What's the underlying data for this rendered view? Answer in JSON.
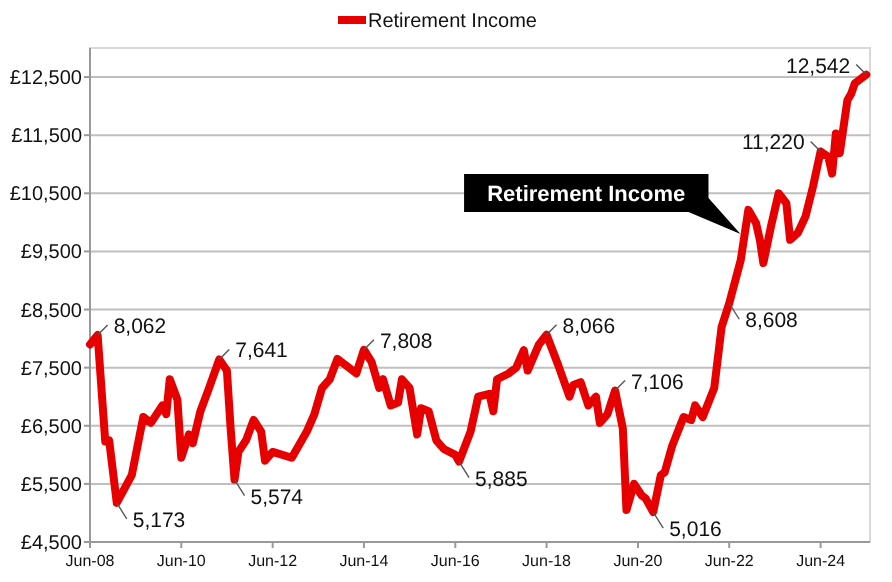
{
  "chart_data": {
    "type": "line",
    "legend": "top",
    "grid": "y",
    "marker": "none",
    "line_style": "solid",
    "xlim": [
      "2008-06",
      "2025-07"
    ],
    "xticks": [
      {
        "value": "2008-06",
        "label": "Jun-08"
      },
      {
        "value": "2010-06",
        "label": "Jun-10"
      },
      {
        "value": "2012-06",
        "label": "Jun-12"
      },
      {
        "value": "2014-06",
        "label": "Jun-14"
      },
      {
        "value": "2016-06",
        "label": "Jun-16"
      },
      {
        "value": "2018-06",
        "label": "Jun-18"
      },
      {
        "value": "2020-06",
        "label": "Jun-20"
      },
      {
        "value": "2022-06",
        "label": "Jun-22"
      },
      {
        "value": "2024-06",
        "label": "Jun-24"
      }
    ],
    "ylim": [
      4500,
      13000
    ],
    "yticks": [
      {
        "value": 4500,
        "label": "£4,500"
      },
      {
        "value": 5500,
        "label": "£5,500"
      },
      {
        "value": 6500,
        "label": "£6,500"
      },
      {
        "value": 7500,
        "label": "£7,500"
      },
      {
        "value": 8500,
        "label": "£8,500"
      },
      {
        "value": 9500,
        "label": "£9,500"
      },
      {
        "value": 10500,
        "label": "£10,500"
      },
      {
        "value": 11500,
        "label": "£11,500"
      },
      {
        "value": 12500,
        "label": "£12,500"
      }
    ],
    "x": [
      "2008-06",
      "2008-08",
      "2008-10",
      "2008-11",
      "2009-01",
      "2009-05",
      "2009-08",
      "2009-10",
      "2010-01",
      "2010-02",
      "2010-03",
      "2010-05",
      "2010-06",
      "2010-08",
      "2010-09",
      "2010-11",
      "2011-01",
      "2011-04",
      "2011-06",
      "2011-07",
      "2011-08",
      "2011-09",
      "2011-11",
      "2012-01",
      "2012-03",
      "2012-04",
      "2012-06",
      "2012-11",
      "2013-03",
      "2013-05",
      "2013-07",
      "2013-09",
      "2013-11",
      "2014-02",
      "2014-04",
      "2014-06",
      "2014-08",
      "2014-10",
      "2014-11",
      "2015-01",
      "2015-03",
      "2015-04",
      "2015-06",
      "2015-08",
      "2015-09",
      "2015-11",
      "2016-01",
      "2016-03",
      "2016-06",
      "2016-07",
      "2016-10",
      "2016-12",
      "2017-03",
      "2017-04",
      "2017-05",
      "2017-08",
      "2017-10",
      "2017-12",
      "2018-01",
      "2018-04",
      "2018-06",
      "2018-09",
      "2018-12",
      "2019-01",
      "2019-03",
      "2019-05",
      "2019-07",
      "2019-08",
      "2019-10",
      "2019-12",
      "2020-02",
      "2020-03",
      "2020-05",
      "2020-07",
      "2020-08",
      "2020-10",
      "2020-12",
      "2021-01",
      "2021-03",
      "2021-06",
      "2021-08",
      "2021-09",
      "2021-11",
      "2022-02",
      "2022-04",
      "2022-06",
      "2022-09",
      "2022-11",
      "2023-01",
      "2023-02",
      "2023-03",
      "2023-05",
      "2023-07",
      "2023-09",
      "2023-10",
      "2023-12",
      "2024-02",
      "2024-04",
      "2024-06",
      "2024-08",
      "2024-09",
      "2024-10",
      "2024-11",
      "2025-01",
      "2025-02",
      "2025-03",
      "2025-06"
    ],
    "series": [
      {
        "name": "Retirement Income",
        "color": "#e60000",
        "values": [
          7900,
          8062,
          6230,
          6250,
          5173,
          5650,
          6650,
          6550,
          6850,
          6700,
          7300,
          6950,
          5950,
          6350,
          6200,
          6750,
          7100,
          7641,
          7450,
          6450,
          5574,
          6050,
          6250,
          6600,
          6400,
          5900,
          6050,
          5950,
          6400,
          6700,
          7150,
          7300,
          7650,
          7500,
          7400,
          7808,
          7600,
          7150,
          7300,
          6850,
          6900,
          7300,
          7150,
          6350,
          6800,
          6750,
          6250,
          6100,
          6000,
          5885,
          6400,
          7000,
          7050,
          6750,
          7300,
          7400,
          7500,
          7800,
          7450,
          7900,
          8066,
          7550,
          7000,
          7200,
          7250,
          6850,
          7000,
          6550,
          6700,
          7106,
          6450,
          5050,
          5500,
          5300,
          5250,
          5016,
          5650,
          5700,
          6150,
          6650,
          6600,
          6850,
          6650,
          7150,
          8200,
          8608,
          9350,
          10215,
          9990,
          9700,
          9300,
          9930,
          10500,
          10330,
          9700,
          9815,
          10100,
          10615,
          11220,
          11130,
          10840,
          11530,
          11190,
          12100,
          12215,
          12390,
          12542
        ],
        "value_labels": [
          null,
          "8,062",
          null,
          null,
          "5,173",
          null,
          null,
          null,
          null,
          null,
          null,
          null,
          null,
          null,
          null,
          null,
          null,
          "7,641",
          null,
          null,
          "5,574",
          null,
          null,
          null,
          null,
          null,
          null,
          null,
          null,
          null,
          null,
          null,
          null,
          null,
          null,
          "7,808",
          null,
          null,
          null,
          null,
          null,
          null,
          null,
          null,
          null,
          null,
          null,
          null,
          null,
          "5,885",
          null,
          null,
          null,
          null,
          null,
          null,
          null,
          null,
          null,
          null,
          "8,066",
          null,
          null,
          null,
          null,
          null,
          null,
          null,
          null,
          "7,106",
          null,
          null,
          null,
          null,
          null,
          "5,016",
          null,
          null,
          null,
          null,
          null,
          null,
          null,
          null,
          null,
          "8,608",
          null,
          null,
          null,
          null,
          null,
          null,
          null,
          null,
          null,
          null,
          null,
          null,
          "11,220",
          null,
          null,
          null,
          null,
          null,
          null,
          null,
          "12,542"
        ]
      }
    ],
    "annotations": [
      {
        "text": "Retirement Income",
        "x": "2022-10",
        "y": 9800
      }
    ]
  }
}
